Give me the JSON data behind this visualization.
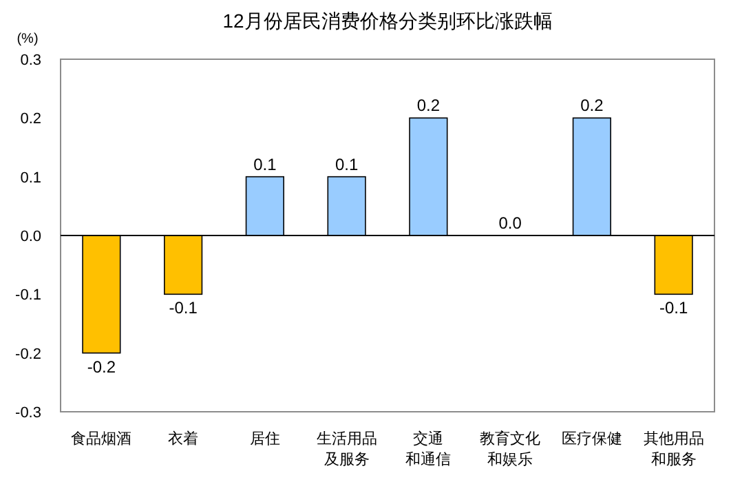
{
  "chart_data": {
    "type": "bar",
    "title": "12月份居民消费价格分类别环比涨跌幅",
    "ylabel": "(%)",
    "categories": [
      "食品烟酒",
      "衣着",
      "居住",
      "生活用品及服务",
      "交通和通信",
      "教育文化和娱乐",
      "医疗保健",
      "其他用品和服务"
    ],
    "values": [
      -0.2,
      -0.1,
      0.1,
      0.1,
      0.2,
      0.0,
      0.2,
      -0.1
    ],
    "colors": [
      "#ffc000",
      "#ffc000",
      "#99ccff",
      "#99ccff",
      "#99ccff",
      "#99ccff",
      "#99ccff",
      "#ffc000"
    ],
    "value_labels": [
      "-0.2",
      "-0.1",
      "0.1",
      "0.1",
      "0.2",
      "0.0",
      "0.2",
      "-0.1"
    ],
    "ylim": [
      -0.3,
      0.3
    ],
    "yticks": [
      {
        "value": 0.3,
        "label": "0.3"
      },
      {
        "value": 0.2,
        "label": "0.2"
      },
      {
        "value": 0.1,
        "label": "0.1"
      },
      {
        "value": 0,
        "label": "0.0"
      },
      {
        "value": -0.1,
        "label": "-0.1"
      },
      {
        "value": -0.2,
        "label": "-0.2"
      },
      {
        "value": -0.3,
        "label": "-0.3"
      }
    ]
  }
}
